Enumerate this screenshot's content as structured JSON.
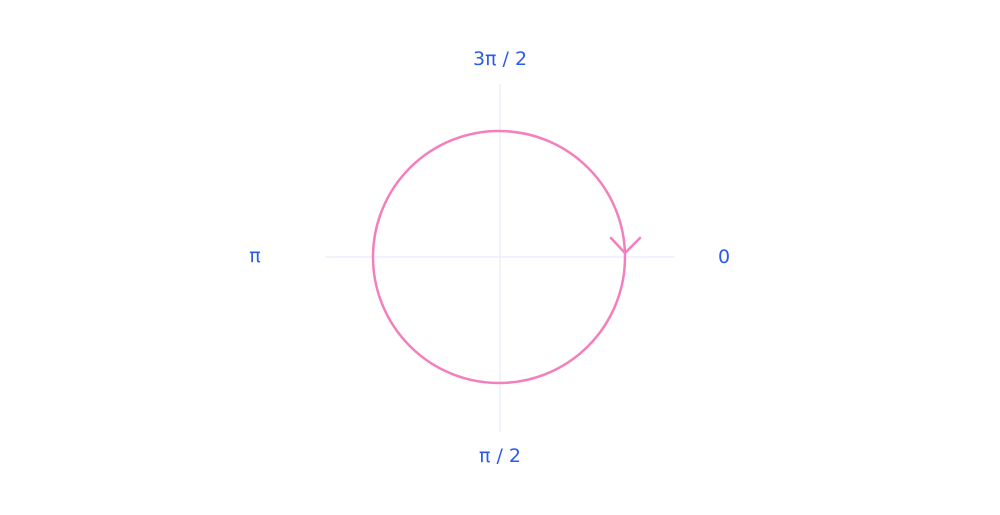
{
  "labels": {
    "top": "3π / 2",
    "right": "0",
    "bottom": "π / 2",
    "left": "π"
  },
  "colors": {
    "label": "#2a5ce6",
    "circle": "#f47fbd",
    "axes": "#e3e6fa"
  },
  "arrow_direction": "clockwise"
}
